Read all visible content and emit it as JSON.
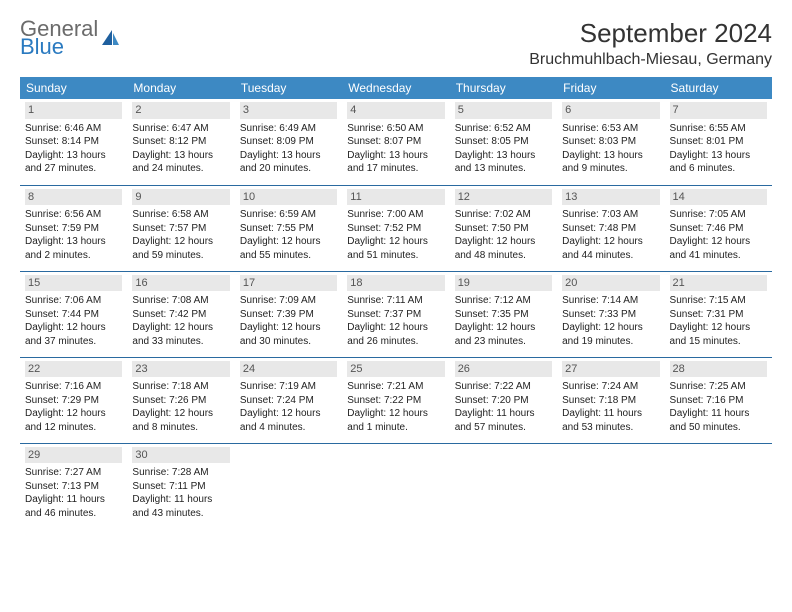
{
  "brand": {
    "part1": "General",
    "part2": "Blue"
  },
  "title": "September 2024",
  "location": "Bruchmuhlbach-Miesau, Germany",
  "day_headers": [
    "Sunday",
    "Monday",
    "Tuesday",
    "Wednesday",
    "Thursday",
    "Friday",
    "Saturday"
  ],
  "colors": {
    "header_bg": "#3d89c3",
    "header_text": "#ffffff",
    "row_border": "#2a6aa0",
    "daynum_bg": "#e8e8e8",
    "brand_gray": "#6b6b6b",
    "brand_blue": "#2a7ac0"
  },
  "weeks": [
    [
      {
        "n": "1",
        "sr": "Sunrise: 6:46 AM",
        "ss": "Sunset: 8:14 PM",
        "dl": "Daylight: 13 hours and 27 minutes."
      },
      {
        "n": "2",
        "sr": "Sunrise: 6:47 AM",
        "ss": "Sunset: 8:12 PM",
        "dl": "Daylight: 13 hours and 24 minutes."
      },
      {
        "n": "3",
        "sr": "Sunrise: 6:49 AM",
        "ss": "Sunset: 8:09 PM",
        "dl": "Daylight: 13 hours and 20 minutes."
      },
      {
        "n": "4",
        "sr": "Sunrise: 6:50 AM",
        "ss": "Sunset: 8:07 PM",
        "dl": "Daylight: 13 hours and 17 minutes."
      },
      {
        "n": "5",
        "sr": "Sunrise: 6:52 AM",
        "ss": "Sunset: 8:05 PM",
        "dl": "Daylight: 13 hours and 13 minutes."
      },
      {
        "n": "6",
        "sr": "Sunrise: 6:53 AM",
        "ss": "Sunset: 8:03 PM",
        "dl": "Daylight: 13 hours and 9 minutes."
      },
      {
        "n": "7",
        "sr": "Sunrise: 6:55 AM",
        "ss": "Sunset: 8:01 PM",
        "dl": "Daylight: 13 hours and 6 minutes."
      }
    ],
    [
      {
        "n": "8",
        "sr": "Sunrise: 6:56 AM",
        "ss": "Sunset: 7:59 PM",
        "dl": "Daylight: 13 hours and 2 minutes."
      },
      {
        "n": "9",
        "sr": "Sunrise: 6:58 AM",
        "ss": "Sunset: 7:57 PM",
        "dl": "Daylight: 12 hours and 59 minutes."
      },
      {
        "n": "10",
        "sr": "Sunrise: 6:59 AM",
        "ss": "Sunset: 7:55 PM",
        "dl": "Daylight: 12 hours and 55 minutes."
      },
      {
        "n": "11",
        "sr": "Sunrise: 7:00 AM",
        "ss": "Sunset: 7:52 PM",
        "dl": "Daylight: 12 hours and 51 minutes."
      },
      {
        "n": "12",
        "sr": "Sunrise: 7:02 AM",
        "ss": "Sunset: 7:50 PM",
        "dl": "Daylight: 12 hours and 48 minutes."
      },
      {
        "n": "13",
        "sr": "Sunrise: 7:03 AM",
        "ss": "Sunset: 7:48 PM",
        "dl": "Daylight: 12 hours and 44 minutes."
      },
      {
        "n": "14",
        "sr": "Sunrise: 7:05 AM",
        "ss": "Sunset: 7:46 PM",
        "dl": "Daylight: 12 hours and 41 minutes."
      }
    ],
    [
      {
        "n": "15",
        "sr": "Sunrise: 7:06 AM",
        "ss": "Sunset: 7:44 PM",
        "dl": "Daylight: 12 hours and 37 minutes."
      },
      {
        "n": "16",
        "sr": "Sunrise: 7:08 AM",
        "ss": "Sunset: 7:42 PM",
        "dl": "Daylight: 12 hours and 33 minutes."
      },
      {
        "n": "17",
        "sr": "Sunrise: 7:09 AM",
        "ss": "Sunset: 7:39 PM",
        "dl": "Daylight: 12 hours and 30 minutes."
      },
      {
        "n": "18",
        "sr": "Sunrise: 7:11 AM",
        "ss": "Sunset: 7:37 PM",
        "dl": "Daylight: 12 hours and 26 minutes."
      },
      {
        "n": "19",
        "sr": "Sunrise: 7:12 AM",
        "ss": "Sunset: 7:35 PM",
        "dl": "Daylight: 12 hours and 23 minutes."
      },
      {
        "n": "20",
        "sr": "Sunrise: 7:14 AM",
        "ss": "Sunset: 7:33 PM",
        "dl": "Daylight: 12 hours and 19 minutes."
      },
      {
        "n": "21",
        "sr": "Sunrise: 7:15 AM",
        "ss": "Sunset: 7:31 PM",
        "dl": "Daylight: 12 hours and 15 minutes."
      }
    ],
    [
      {
        "n": "22",
        "sr": "Sunrise: 7:16 AM",
        "ss": "Sunset: 7:29 PM",
        "dl": "Daylight: 12 hours and 12 minutes."
      },
      {
        "n": "23",
        "sr": "Sunrise: 7:18 AM",
        "ss": "Sunset: 7:26 PM",
        "dl": "Daylight: 12 hours and 8 minutes."
      },
      {
        "n": "24",
        "sr": "Sunrise: 7:19 AM",
        "ss": "Sunset: 7:24 PM",
        "dl": "Daylight: 12 hours and 4 minutes."
      },
      {
        "n": "25",
        "sr": "Sunrise: 7:21 AM",
        "ss": "Sunset: 7:22 PM",
        "dl": "Daylight: 12 hours and 1 minute."
      },
      {
        "n": "26",
        "sr": "Sunrise: 7:22 AM",
        "ss": "Sunset: 7:20 PM",
        "dl": "Daylight: 11 hours and 57 minutes."
      },
      {
        "n": "27",
        "sr": "Sunrise: 7:24 AM",
        "ss": "Sunset: 7:18 PM",
        "dl": "Daylight: 11 hours and 53 minutes."
      },
      {
        "n": "28",
        "sr": "Sunrise: 7:25 AM",
        "ss": "Sunset: 7:16 PM",
        "dl": "Daylight: 11 hours and 50 minutes."
      }
    ],
    [
      {
        "n": "29",
        "sr": "Sunrise: 7:27 AM",
        "ss": "Sunset: 7:13 PM",
        "dl": "Daylight: 11 hours and 46 minutes."
      },
      {
        "n": "30",
        "sr": "Sunrise: 7:28 AM",
        "ss": "Sunset: 7:11 PM",
        "dl": "Daylight: 11 hours and 43 minutes."
      },
      null,
      null,
      null,
      null,
      null
    ]
  ]
}
